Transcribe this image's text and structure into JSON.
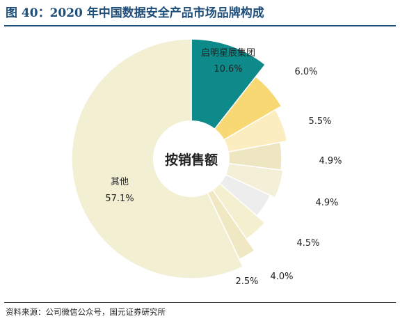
{
  "title": "图 40：2020 年中国数据安全产品市场品牌构成",
  "source": "资料来源：公司微信公众号，国元证券研究所",
  "chart_data": {
    "type": "pie",
    "donut": true,
    "center_label": "按销售额",
    "slices": [
      {
        "label": "启明星辰集团",
        "value_label": "10.6%",
        "value": 10.6,
        "color": "#0e8a8a"
      },
      {
        "label": "",
        "value_label": "6.0%",
        "value": 6.0,
        "color": "#f7d873"
      },
      {
        "label": "",
        "value_label": "5.5%",
        "value": 5.5,
        "color": "#fcedc0"
      },
      {
        "label": "",
        "value_label": "4.9%",
        "value": 4.9,
        "color": "#ede6c0"
      },
      {
        "label": "",
        "value_label": "4.9%",
        "value": 4.9,
        "color": "#f4f0d7"
      },
      {
        "label": "",
        "value_label": "4.5%",
        "value": 4.5,
        "color": "#ededed"
      },
      {
        "label": "",
        "value_label": "4.0%",
        "value": 4.0,
        "color": "#f3efcf"
      },
      {
        "label": "",
        "value_label": "2.5%",
        "value": 2.5,
        "color": "#efe8c3"
      },
      {
        "label": "其他",
        "value_label": "57.1%",
        "value": 57.1,
        "color": "#f2efd2"
      }
    ]
  }
}
